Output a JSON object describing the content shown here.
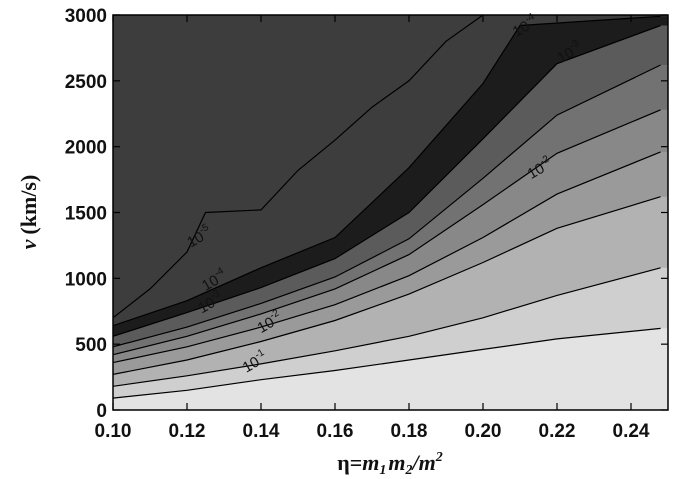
{
  "chart_data": {
    "type": "contour",
    "xlabel_prefix": "η=",
    "xlabel_m1": "m",
    "xlabel_m1_sub": "1",
    "xlabel_m2": "m",
    "xlabel_m2_sub": "2",
    "xlabel_div": "/m",
    "xlabel_sup": "2",
    "ylabel_var": "v",
    "ylabel_unit": "(km/s)",
    "xlim": [
      0.1,
      0.25
    ],
    "ylim": [
      0,
      3000
    ],
    "x_ticks": [
      "0.10",
      "0.12",
      "0.14",
      "0.16",
      "0.18",
      "0.20",
      "0.22",
      "0.24"
    ],
    "x_tick_values": [
      0.1,
      0.12,
      0.14,
      0.16,
      0.18,
      0.2,
      0.22,
      0.24
    ],
    "y_ticks": [
      "0",
      "500",
      "1000",
      "1500",
      "2000",
      "2500",
      "3000"
    ],
    "y_tick_values": [
      0,
      500,
      1000,
      1500,
      2000,
      2500,
      3000
    ],
    "bands": [
      {
        "color": "#e3e3e3"
      },
      {
        "color": "#cfcfcf"
      },
      {
        "color": "#b2b2b2"
      },
      {
        "color": "#9a9a9a"
      },
      {
        "color": "#888888"
      },
      {
        "color": "#727272"
      },
      {
        "color": "#5b5b5b"
      },
      {
        "color": "#1c1c1c"
      },
      {
        "color": "#3d3d3d"
      }
    ],
    "contours": [
      {
        "x": [
          0.1,
          0.12,
          0.14,
          0.16,
          0.18,
          0.2,
          0.22,
          0.248
        ],
        "y": [
          90,
          150,
          230,
          300,
          380,
          460,
          540,
          620
        ]
      },
      {
        "x": [
          0.1,
          0.12,
          0.14,
          0.16,
          0.18,
          0.2,
          0.22,
          0.248
        ],
        "y": [
          180,
          260,
          350,
          450,
          560,
          700,
          870,
          1080
        ]
      },
      {
        "x": [
          0.1,
          0.12,
          0.14,
          0.16,
          0.18,
          0.2,
          0.22,
          0.248
        ],
        "y": [
          270,
          380,
          520,
          680,
          880,
          1120,
          1380,
          1620
        ]
      },
      {
        "x": [
          0.1,
          0.12,
          0.14,
          0.16,
          0.18,
          0.2,
          0.22,
          0.248
        ],
        "y": [
          360,
          480,
          630,
          800,
          1020,
          1310,
          1640,
          1960
        ]
      },
      {
        "x": [
          0.1,
          0.12,
          0.14,
          0.16,
          0.18,
          0.2,
          0.22,
          0.248
        ],
        "y": [
          420,
          560,
          730,
          920,
          1180,
          1560,
          1950,
          2280
        ]
      },
      {
        "x": [
          0.1,
          0.12,
          0.14,
          0.16,
          0.18,
          0.2,
          0.22,
          0.248
        ],
        "y": [
          480,
          630,
          810,
          1010,
          1300,
          1760,
          2240,
          2620
        ]
      },
      {
        "x": [
          0.1,
          0.12,
          0.14,
          0.16,
          0.18,
          0.2,
          0.22,
          0.248
        ],
        "y": [
          560,
          740,
          930,
          1150,
          1500,
          2060,
          2630,
          2920
        ]
      },
      {
        "x": [
          0.1,
          0.12,
          0.14,
          0.16,
          0.18,
          0.2,
          0.21,
          0.248
        ],
        "y": [
          640,
          830,
          1080,
          1310,
          1840,
          2480,
          2920,
          2990
        ]
      },
      {
        "x": [
          0.1,
          0.11,
          0.12,
          0.125,
          0.14,
          0.15,
          0.16,
          0.17,
          0.18,
          0.19,
          0.2
        ],
        "y": [
          700,
          920,
          1200,
          1500,
          1520,
          1820,
          2050,
          2300,
          2500,
          2800,
          3000
        ]
      }
    ],
    "contour_labels": [
      {
        "base": "10",
        "exp": "-1",
        "x": 0.139,
        "y": 330
      },
      {
        "base": "10",
        "exp": "-2",
        "x": 0.143,
        "y": 630
      },
      {
        "base": "10",
        "exp": "-3",
        "x": 0.127,
        "y": 780
      },
      {
        "base": "10",
        "exp": "-4",
        "x": 0.128,
        "y": 950
      },
      {
        "base": "10",
        "exp": "-5",
        "x": 0.124,
        "y": 1280
      },
      {
        "base": "10",
        "exp": "-2",
        "x": 0.216,
        "y": 1800
      },
      {
        "base": "10",
        "exp": "-3",
        "x": 0.224,
        "y": 2680
      },
      {
        "base": "10",
        "exp": "-4",
        "x": 0.212,
        "y": 2880
      }
    ]
  }
}
